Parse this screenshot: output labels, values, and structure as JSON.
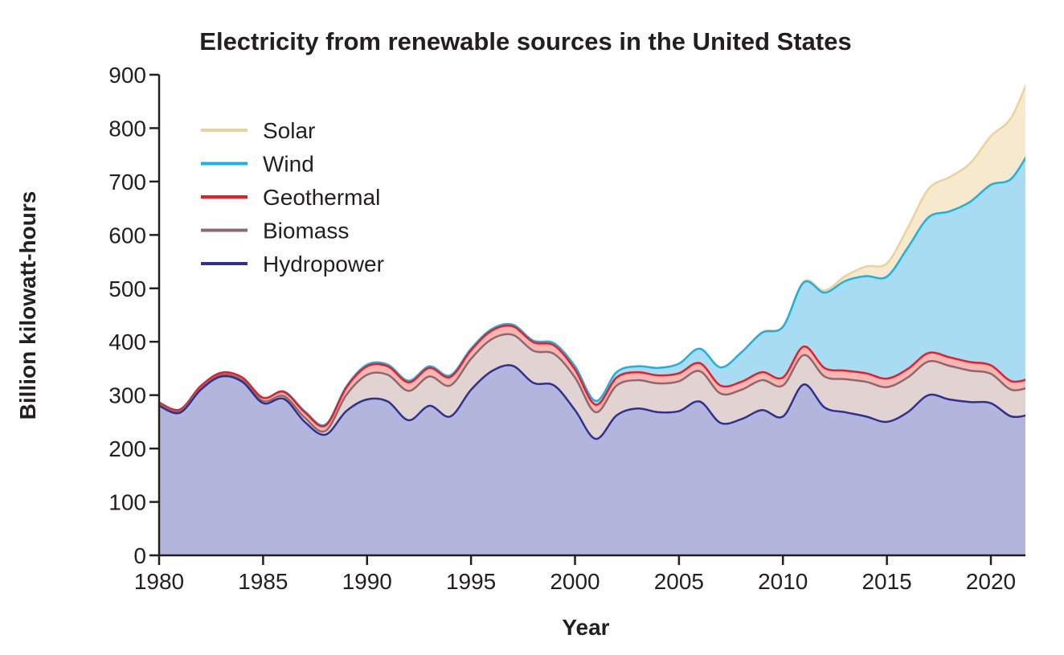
{
  "chart_data": {
    "type": "area",
    "stacked": true,
    "title": "Electricity from renewable sources in the United States",
    "xlabel": "Year",
    "ylabel": "Billion kilowatt-hours",
    "xlim": [
      1980,
      2021.7
    ],
    "ylim": [
      0,
      900
    ],
    "xticks": [
      1980,
      1985,
      1990,
      1995,
      2000,
      2005,
      2010,
      2015,
      2020
    ],
    "yticks": [
      0,
      100,
      200,
      300,
      400,
      500,
      600,
      700,
      800,
      900
    ],
    "grid": false,
    "legend_position": "top-left",
    "x": [
      1980,
      1981,
      1982,
      1983,
      1984,
      1985,
      1986,
      1987,
      1988,
      1989,
      1990,
      1991,
      1992,
      1993,
      1994,
      1995,
      1996,
      1997,
      1998,
      1999,
      2000,
      2001,
      2002,
      2003,
      2004,
      2005,
      2006,
      2007,
      2008,
      2009,
      2010,
      2011,
      2012,
      2013,
      2014,
      2015,
      2016,
      2017,
      2018,
      2019,
      2020,
      2021,
      2022
    ],
    "series": [
      {
        "name": "Hydropower",
        "line_color": "#2e3192",
        "fill_color": "#b3b6dc",
        "values": [
          280,
          267,
          310,
          335,
          325,
          285,
          293,
          250,
          226,
          270,
          292,
          288,
          253,
          280,
          260,
          310,
          345,
          355,
          323,
          318,
          272,
          218,
          262,
          275,
          268,
          270,
          288,
          248,
          255,
          272,
          260,
          320,
          277,
          268,
          260,
          250,
          268,
          300,
          292,
          287,
          285,
          260,
          265
        ]
      },
      {
        "name": "Biomass",
        "line_color": "#8b6a6e",
        "fill_color": "#e2d3d3",
        "values": [
          3,
          3,
          3,
          3,
          3,
          4,
          5,
          8,
          7,
          30,
          46,
          50,
          55,
          55,
          58,
          58,
          60,
          58,
          60,
          59,
          61,
          50,
          56,
          53,
          54,
          56,
          57,
          55,
          55,
          56,
          58,
          55,
          58,
          62,
          65,
          65,
          65,
          63,
          63,
          59,
          55,
          50,
          52
        ]
      },
      {
        "name": "Geothermal",
        "line_color": "#ed1c24",
        "fill_color": "#f6b6b4",
        "values": [
          3,
          3,
          4,
          4,
          5,
          6,
          8,
          10,
          10,
          14,
          16,
          16,
          16,
          16,
          16,
          16,
          16,
          16,
          16,
          16,
          15,
          14,
          15,
          15,
          15,
          15,
          15,
          15,
          15,
          15,
          15,
          16,
          16,
          16,
          16,
          16,
          16,
          16,
          16,
          16,
          16,
          16,
          16
        ]
      },
      {
        "name": "Wind",
        "line_color": "#1cb0e8",
        "fill_color": "#a8dcf2",
        "values": [
          0,
          0,
          0,
          0,
          0,
          0,
          1,
          2,
          2,
          2,
          3,
          3,
          3,
          3,
          3,
          3,
          3,
          3,
          3,
          4,
          6,
          7,
          10,
          11,
          14,
          18,
          27,
          34,
          55,
          74,
          95,
          120,
          141,
          168,
          182,
          191,
          227,
          254,
          273,
          300,
          338,
          380,
          434
        ]
      },
      {
        "name": "Solar",
        "line_color": "#ead29a",
        "fill_color": "#f7e9cd",
        "values": [
          0,
          0,
          0,
          0,
          0,
          0,
          0,
          0,
          0,
          0,
          0,
          0,
          0,
          0,
          0,
          0,
          0,
          0,
          0,
          0,
          0,
          0,
          0,
          0,
          0,
          0,
          0,
          0,
          0,
          1,
          1,
          2,
          4,
          9,
          18,
          25,
          37,
          53,
          64,
          72,
          91,
          115,
          145
        ]
      }
    ]
  }
}
